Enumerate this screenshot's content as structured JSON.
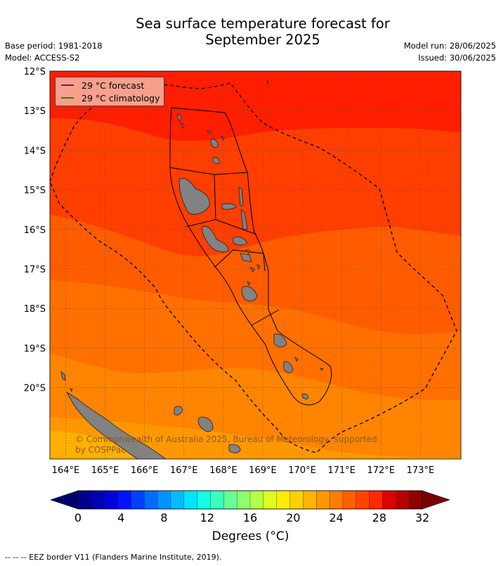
{
  "title": "Sea surface temperature forecast for",
  "title_line2": "September 2025",
  "meta": {
    "base_period": "Base period: 1981-2018",
    "model": "Model: ACCESS-S2",
    "model_run": "Model run: 28/06/2025",
    "issued": "Issued: 30/06/2025"
  },
  "legend": {
    "forecast_label": "29 °C  forecast",
    "climatology_label": "29 °C  climatology",
    "forecast_color": "#8b0a6b",
    "climatology_color": "#1a8a1a"
  },
  "copyright": "© Commonwealth of Australia 2025, Bureau of Meteorology, supported by COSPPac",
  "map": {
    "lat_labels": [
      "12°S",
      "13°S",
      "14°S",
      "15°S",
      "16°S",
      "17°S",
      "18°S",
      "19°S",
      "20°S"
    ],
    "lon_labels": [
      "164°E",
      "165°E",
      "166°E",
      "167°E",
      "168°E",
      "169°E",
      "170°E",
      "171°E",
      "172°E",
      "173°E"
    ],
    "land_color": "#828282",
    "sst_bands": [
      {
        "label": "30-31 °C",
        "color": "#ff1e00"
      },
      {
        "label": "29-30 °C",
        "color": "#ff3e00"
      },
      {
        "label": "28-29 °C",
        "color": "#ff5c00"
      },
      {
        "label": "27-28 °C",
        "color": "#ff7000"
      },
      {
        "label": "26-27 °C",
        "color": "#ff8400"
      },
      {
        "label": "25-26 °C",
        "color": "#ff9800"
      },
      {
        "label": "24-25 °C",
        "color": "#ffb000"
      }
    ]
  },
  "colorbar": {
    "ticks": [
      "0",
      "4",
      "8",
      "12",
      "16",
      "20",
      "24",
      "28",
      "32"
    ],
    "label": "Degrees (°C)",
    "colors": [
      "#00008b",
      "#0000b4",
      "#0000dc",
      "#0014ff",
      "#0040ff",
      "#006cff",
      "#0094ff",
      "#00bcff",
      "#00e4ff",
      "#14ffe6",
      "#3cffbe",
      "#64ff96",
      "#8cff6e",
      "#b4ff46",
      "#dcff1e",
      "#ffee00",
      "#ffd000",
      "#ffb400",
      "#ff9800",
      "#ff7c00",
      "#ff6000",
      "#ff4400",
      "#ff2800",
      "#e00000",
      "#b40000",
      "#8b0000"
    ],
    "under_color": "#00006a",
    "over_color": "#7a0000"
  },
  "footer": "--  --  -- EEZ border V11 (Flanders Marine Institute, 2019)."
}
